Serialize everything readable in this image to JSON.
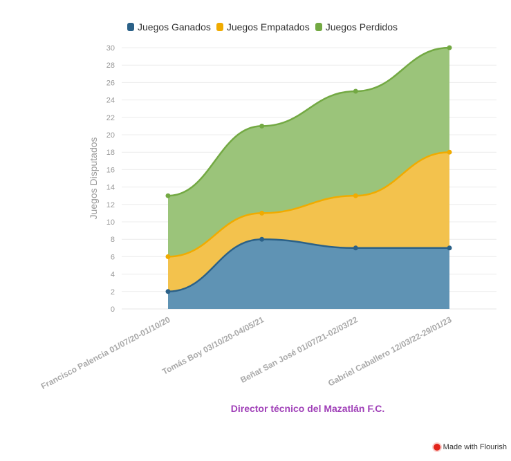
{
  "chart_data": {
    "type": "area",
    "stacked": true,
    "categories": [
      "Francisco Palencia 01/07/20-01/10/20",
      "Tomás Boy 03/10/20-04/05/21",
      "Beñat San José 01/07/21-02/03/22",
      "Gabriel Caballero 12/03/22-29/01/23"
    ],
    "series": [
      {
        "name": "Juegos Ganados",
        "values": [
          2,
          8,
          7,
          7
        ],
        "color": "#5f93b4",
        "line_color": "#2b6188"
      },
      {
        "name": "Juegos Empatados",
        "values": [
          4,
          3,
          6,
          11
        ],
        "color": "#f3c24d",
        "line_color": "#f0ab00"
      },
      {
        "name": "Juegos Perdidos",
        "values": [
          7,
          10,
          12,
          12
        ],
        "color": "#9bc47a",
        "line_color": "#73a943"
      }
    ],
    "ylabel": "Juegos Disputados",
    "xlabel": "Director técnico del Mazatlán F.C.",
    "ylim": [
      0,
      30
    ],
    "yticks": [
      0,
      2,
      4,
      6,
      8,
      10,
      12,
      14,
      16,
      18,
      20,
      22,
      24,
      26,
      28,
      30
    ],
    "grid": true,
    "legend_position": "top"
  },
  "credit": "Made with Flourish"
}
